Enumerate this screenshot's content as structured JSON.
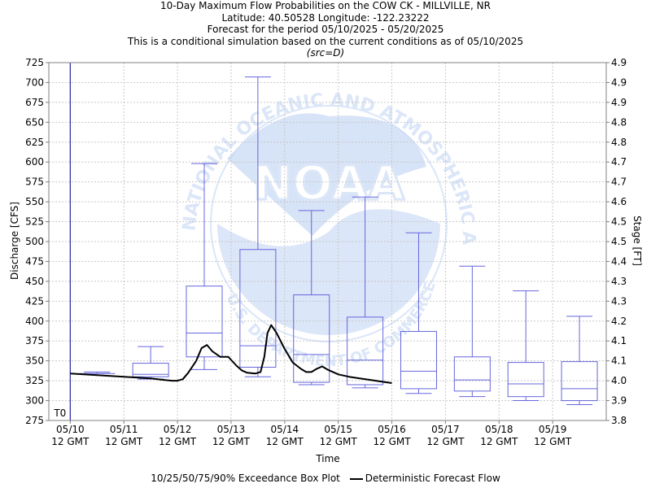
{
  "header": {
    "line1": "10-Day Maximum Flow Probabilities on the COW CK - MILLVILLE, NR",
    "line2": "Latitude: 40.50528 Longitude: -122.23222",
    "line3": "Forecast for the period 05/10/2025 - 05/20/2025",
    "line4": "This is a conditional simulation based on the current conditions as of 05/10/2025",
    "line5": "(src=D)"
  },
  "watermark": {
    "logo_text": "NOAA",
    "ring_text": "NATIONAL OCEANIC AND ATMOSPHERIC ADMINISTRATION",
    "bottom_text": "U.S. DEPARTMENT OF COMMERCE"
  },
  "legend": {
    "box_label": "10/25/50/75/90% Exceedance Box Plot",
    "line_label": "Deterministic Forecast Flow"
  },
  "colors": {
    "box": "#6666dd",
    "line": "#000000",
    "t0": "#3333aa",
    "grid": "#c8c8c8",
    "watermark": "#dbe6f8"
  },
  "chart_data": {
    "type": "box",
    "xlabel": "Time",
    "ylabel": "Discharge [CFS]",
    "ylabel_right": "Stage [FT]",
    "ylim": [
      275,
      725
    ],
    "yticks": [
      275,
      300,
      325,
      350,
      375,
      400,
      425,
      450,
      475,
      500,
      525,
      550,
      575,
      600,
      625,
      650,
      675,
      700,
      725
    ],
    "right_ticks": [
      "3.8",
      "3.9",
      "4.0",
      "4.1",
      "4.1",
      "4.2",
      "4.3",
      "4.3",
      "4.4",
      "4.5",
      "4.5",
      "4.6",
      "4.7",
      "4.7",
      "4.8",
      "4.8",
      "4.9",
      "4.9",
      "4.9"
    ],
    "x_unit": "days from 05/10 12 GMT",
    "xlim": [
      -0.4,
      10.0
    ],
    "xticks": [
      {
        "x": 0,
        "date": "05/10",
        "time": "12 GMT"
      },
      {
        "x": 1,
        "date": "05/11",
        "time": "12 GMT"
      },
      {
        "x": 2,
        "date": "05/12",
        "time": "12 GMT"
      },
      {
        "x": 3,
        "date": "05/13",
        "time": "12 GMT"
      },
      {
        "x": 4,
        "date": "05/14",
        "time": "12 GMT"
      },
      {
        "x": 5,
        "date": "05/15",
        "time": "12 GMT"
      },
      {
        "x": 6,
        "date": "05/16",
        "time": "12 GMT"
      },
      {
        "x": 7,
        "date": "05/17",
        "time": "12 GMT"
      },
      {
        "x": 8,
        "date": "05/18",
        "time": "12 GMT"
      },
      {
        "x": 9,
        "date": "05/19",
        "time": "12 GMT"
      }
    ],
    "t0": {
      "x": 0,
      "label": "T0"
    },
    "boxes": [
      {
        "x": 0.5,
        "p10": 334,
        "p25": 334,
        "p50": 334,
        "p75": 334,
        "p90": 336
      },
      {
        "x": 1.5,
        "p10": 327,
        "p25": 330,
        "p50": 333,
        "p75": 347,
        "p90": 368
      },
      {
        "x": 2.5,
        "p10": 339,
        "p25": 355,
        "p50": 385,
        "p75": 444,
        "p90": 598
      },
      {
        "x": 3.5,
        "p10": 330,
        "p25": 342,
        "p50": 369,
        "p75": 490,
        "p90": 707
      },
      {
        "x": 4.5,
        "p10": 320,
        "p25": 323,
        "p50": 358,
        "p75": 433,
        "p90": 539
      },
      {
        "x": 5.5,
        "p10": 316,
        "p25": 320,
        "p50": 351,
        "p75": 405,
        "p90": 556
      },
      {
        "x": 6.5,
        "p10": 309,
        "p25": 315,
        "p50": 337,
        "p75": 387,
        "p90": 511
      },
      {
        "x": 7.5,
        "p10": 305,
        "p25": 312,
        "p50": 326,
        "p75": 355,
        "p90": 469
      },
      {
        "x": 8.5,
        "p10": 300,
        "p25": 305,
        "p50": 321,
        "p75": 348,
        "p90": 438
      },
      {
        "x": 9.5,
        "p10": 295,
        "p25": 300,
        "p50": 315,
        "p75": 349,
        "p90": 406
      }
    ],
    "deterministic": {
      "name": "Deterministic Forecast Flow",
      "x": [
        0,
        0.25,
        0.5,
        0.75,
        1,
        1.25,
        1.5,
        1.75,
        1.9,
        2,
        2.1,
        2.2,
        2.35,
        2.45,
        2.55,
        2.65,
        2.8,
        2.95,
        3.1,
        3.2,
        3.3,
        3.45,
        3.55,
        3.62,
        3.68,
        3.75,
        3.85,
        4,
        4.15,
        4.3,
        4.4,
        4.5,
        4.6,
        4.7,
        4.8,
        5,
        5.2,
        5.4,
        5.6,
        5.8,
        6
      ],
      "y": [
        334,
        333,
        332,
        331,
        330,
        329,
        328,
        326,
        325,
        325,
        327,
        335,
        350,
        366,
        370,
        362,
        355,
        355,
        344,
        338,
        335,
        334,
        336,
        355,
        385,
        395,
        385,
        365,
        348,
        340,
        336,
        336,
        340,
        343,
        339,
        333,
        330,
        328,
        326,
        324,
        322
      ]
    }
  }
}
